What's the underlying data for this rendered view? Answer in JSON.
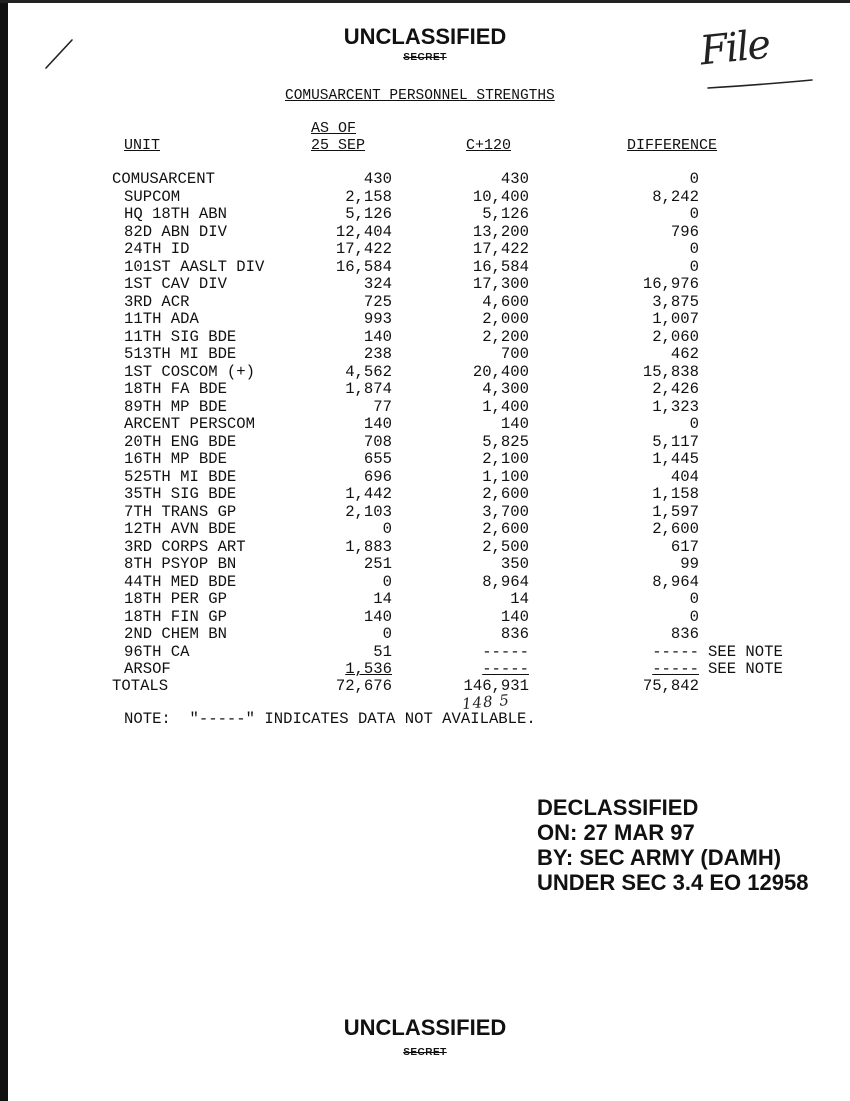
{
  "header": {
    "classification": "UNCLASSIFIED",
    "struck_marking": "SECRET",
    "title": "COMUSARCENT PERSONNEL STRENGTHS",
    "handwritten_note": "File"
  },
  "table": {
    "columns": {
      "unit": "UNIT",
      "as_of_line1": "AS OF",
      "as_of_line2": "25 SEP",
      "c120": "C+120",
      "difference": "DIFFERENCE"
    },
    "rows": [
      {
        "unit": "COMUSARCENT",
        "as_of": "430",
        "c120": "430",
        "difference": "0",
        "note": ""
      },
      {
        "unit": "SUPCOM",
        "as_of": "2,158",
        "c120": "10,400",
        "difference": "8,242",
        "note": ""
      },
      {
        "unit": "HQ 18TH ABN",
        "as_of": "5,126",
        "c120": "5,126",
        "difference": "0",
        "note": ""
      },
      {
        "unit": "82D ABN DIV",
        "as_of": "12,404",
        "c120": "13,200",
        "difference": "796",
        "note": ""
      },
      {
        "unit": "24TH ID",
        "as_of": "17,422",
        "c120": "17,422",
        "difference": "0",
        "note": ""
      },
      {
        "unit": "101ST AASLT DIV",
        "as_of": "16,584",
        "c120": "16,584",
        "difference": "0",
        "note": ""
      },
      {
        "unit": "1ST CAV DIV",
        "as_of": "324",
        "c120": "17,300",
        "difference": "16,976",
        "note": ""
      },
      {
        "unit": "3RD ACR",
        "as_of": "725",
        "c120": "4,600",
        "difference": "3,875",
        "note": ""
      },
      {
        "unit": "11TH ADA",
        "as_of": "993",
        "c120": "2,000",
        "difference": "1,007",
        "note": ""
      },
      {
        "unit": "11TH SIG BDE",
        "as_of": "140",
        "c120": "2,200",
        "difference": "2,060",
        "note": ""
      },
      {
        "unit": "513TH MI BDE",
        "as_of": "238",
        "c120": "700",
        "difference": "462",
        "note": ""
      },
      {
        "unit": "1ST COSCOM (+)",
        "as_of": "4,562",
        "c120": "20,400",
        "difference": "15,838",
        "note": ""
      },
      {
        "unit": "18TH FA BDE",
        "as_of": "1,874",
        "c120": "4,300",
        "difference": "2,426",
        "note": ""
      },
      {
        "unit": "89TH MP BDE",
        "as_of": "77",
        "c120": "1,400",
        "difference": "1,323",
        "note": ""
      },
      {
        "unit": "ARCENT PERSCOM",
        "as_of": "140",
        "c120": "140",
        "difference": "0",
        "note": ""
      },
      {
        "unit": "20TH ENG BDE",
        "as_of": "708",
        "c120": "5,825",
        "difference": "5,117",
        "note": ""
      },
      {
        "unit": "16TH MP BDE",
        "as_of": "655",
        "c120": "2,100",
        "difference": "1,445",
        "note": ""
      },
      {
        "unit": "525TH MI BDE",
        "as_of": "696",
        "c120": "1,100",
        "difference": "404",
        "note": ""
      },
      {
        "unit": "35TH SIG BDE",
        "as_of": "1,442",
        "c120": "2,600",
        "difference": "1,158",
        "note": ""
      },
      {
        "unit": "7TH TRANS GP",
        "as_of": "2,103",
        "c120": "3,700",
        "difference": "1,597",
        "note": ""
      },
      {
        "unit": "12TH AVN BDE",
        "as_of": "0",
        "c120": "2,600",
        "difference": "2,600",
        "note": ""
      },
      {
        "unit": "3RD CORPS ART",
        "as_of": "1,883",
        "c120": "2,500",
        "difference": "617",
        "note": ""
      },
      {
        "unit": "8TH PSYOP BN",
        "as_of": "251",
        "c120": "350",
        "difference": "99",
        "note": ""
      },
      {
        "unit": "44TH MED BDE",
        "as_of": "0",
        "c120": "8,964",
        "difference": "8,964",
        "note": ""
      },
      {
        "unit": "18TH PER GP",
        "as_of": "14",
        "c120": "14",
        "difference": "0",
        "note": ""
      },
      {
        "unit": "18TH FIN GP",
        "as_of": "140",
        "c120": "140",
        "difference": "0",
        "note": ""
      },
      {
        "unit": "2ND CHEM BN",
        "as_of": "0",
        "c120": "836",
        "difference": "836",
        "note": ""
      },
      {
        "unit": "96TH CA",
        "as_of": "51",
        "c120": "-----",
        "difference": "-----",
        "note": "SEE NOTE"
      },
      {
        "unit": "ARSOF",
        "as_of": "1,536",
        "c120": "-----",
        "difference": "-----",
        "note": "SEE NOTE"
      }
    ],
    "totals": {
      "label": "TOTALS",
      "as_of": "72,676",
      "c120": "146,931",
      "difference": "75,842",
      "handwritten": "148 5"
    },
    "note": "NOTE:  \"-----\" INDICATES DATA NOT AVAILABLE."
  },
  "declassification": {
    "line1": "DECLASSIFIED",
    "line2": "ON: 27 MAR 97",
    "line3": "BY: SEC ARMY (DAMH)",
    "line4": "UNDER SEC 3.4 EO 12958"
  },
  "footer": {
    "classification": "UNCLASSIFIED",
    "struck_marking": "SECRET"
  }
}
